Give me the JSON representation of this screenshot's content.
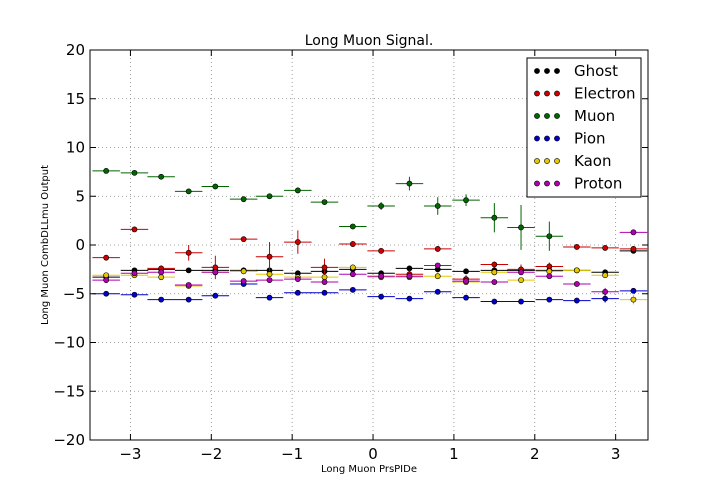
{
  "chart_data": {
    "type": "scatter",
    "title": "Long Muon Signal.",
    "xlabel": "Long Muon PrsPIDe",
    "ylabel": "Long Muon CombDLLmu Output",
    "xlim": [
      -3.5,
      3.4
    ],
    "ylim": [
      -20,
      20
    ],
    "xticks": [
      -3,
      -2,
      -1,
      0,
      1,
      2,
      3
    ],
    "yticks": [
      -20,
      -15,
      -10,
      -5,
      0,
      5,
      10,
      15,
      20
    ],
    "x_tick_labels": [
      "−3",
      "−2",
      "−1",
      "0",
      "1",
      "2",
      "3"
    ],
    "y_tick_labels": [
      "−20",
      "−15",
      "−10",
      "−5",
      "0",
      "5",
      "10",
      "15",
      "20"
    ],
    "grid": true,
    "legend_position": "top-right",
    "x_halfwidth": 0.17,
    "series": [
      {
        "name": "Ghost",
        "color": "#000000",
        "x": [
          -3.3,
          -2.95,
          -2.62,
          -2.28,
          -1.95,
          -1.6,
          -1.28,
          -0.93,
          -0.6,
          -0.25,
          0.1,
          0.45,
          0.8,
          1.15,
          1.5,
          1.83,
          2.18,
          2.52,
          2.87,
          3.22
        ],
        "y": [
          -3.3,
          -2.6,
          -2.5,
          -2.6,
          -2.6,
          -2.6,
          -2.6,
          -2.9,
          -2.7,
          -2.5,
          -2.9,
          -2.4,
          -2.5,
          -2.7,
          -2.6,
          -2.6,
          -2.6,
          -2.6,
          -2.8,
          -0.6
        ],
        "err": [
          0.2,
          0.2,
          0.2,
          0.2,
          0.2,
          0.3,
          0.5,
          0.3,
          0.3,
          0.2,
          0.2,
          0.2,
          0.3,
          0.2,
          0.2,
          0.2,
          0.2,
          0.2,
          0.2,
          0.2
        ]
      },
      {
        "name": "Electron",
        "color": "#cc0000",
        "x": [
          -3.3,
          -2.95,
          -2.62,
          -2.28,
          -1.95,
          -1.6,
          -1.28,
          -0.93,
          -0.6,
          -0.25,
          0.1,
          0.45,
          0.8,
          1.15,
          1.5,
          1.83,
          2.18,
          2.52,
          2.87,
          3.22
        ],
        "y": [
          -1.3,
          1.6,
          -2.4,
          -0.8,
          -2.3,
          0.6,
          -1.2,
          0.3,
          -2.3,
          0.1,
          -0.6,
          -3.0,
          -0.4,
          -3.5,
          -2.0,
          -2.5,
          -2.2,
          -0.2,
          -0.3,
          -0.4
        ],
        "err": [
          0.2,
          0.2,
          0.3,
          0.8,
          1.2,
          0.2,
          1.5,
          1.2,
          0.9,
          0.3,
          0.3,
          0.4,
          0.3,
          0.4,
          0.3,
          0.5,
          0.4,
          0.2,
          0.2,
          0.2
        ]
      },
      {
        "name": "Muon",
        "color": "#006600",
        "x": [
          -3.3,
          -2.95,
          -2.62,
          -2.28,
          -1.95,
          -1.6,
          -1.28,
          -0.93,
          -0.6,
          -0.25,
          0.1,
          0.45,
          0.8,
          1.15,
          1.5,
          1.83,
          2.18
        ],
        "y": [
          7.6,
          7.4,
          7.0,
          5.5,
          6.0,
          4.7,
          5.0,
          5.6,
          4.4,
          1.9,
          4.0,
          6.3,
          4.0,
          4.6,
          2.8,
          1.8,
          0.9
        ],
        "err": [
          0.2,
          0.2,
          0.2,
          0.2,
          0.2,
          0.2,
          0.2,
          0.3,
          0.2,
          0.2,
          0.4,
          0.7,
          0.9,
          0.6,
          1.5,
          2.3,
          1.5
        ]
      },
      {
        "name": "Pion",
        "color": "#0000cc",
        "x": [
          -3.3,
          -2.95,
          -2.62,
          -2.28,
          -1.95,
          -1.6,
          -1.28,
          -0.93,
          -0.6,
          -0.25,
          0.1,
          0.45,
          0.8,
          1.15,
          1.5,
          1.83,
          2.18,
          2.52,
          2.87,
          3.22
        ],
        "y": [
          -5.0,
          -5.1,
          -5.6,
          -5.6,
          -5.2,
          -4.0,
          -5.4,
          -4.9,
          -4.9,
          -4.6,
          -5.3,
          -5.5,
          -4.8,
          -5.4,
          -5.8,
          -5.8,
          -5.6,
          -5.7,
          -5.5,
          -4.7
        ],
        "err": [
          0.2,
          0.2,
          0.2,
          0.2,
          0.2,
          0.2,
          0.2,
          0.2,
          0.2,
          0.2,
          0.2,
          0.2,
          0.2,
          0.2,
          0.2,
          0.2,
          0.2,
          0.2,
          0.4,
          0.2
        ]
      },
      {
        "name": "Kaon",
        "color": "#e6c800",
        "x": [
          -3.3,
          -2.95,
          -2.62,
          -2.28,
          -1.95,
          -1.6,
          -1.28,
          -0.93,
          -0.6,
          -0.25,
          0.1,
          0.45,
          0.8,
          1.15,
          1.5,
          1.83,
          2.18,
          2.52,
          2.87,
          3.22
        ],
        "y": [
          -3.1,
          -3.1,
          -3.3,
          -4.2,
          -2.8,
          -2.7,
          -3.0,
          -3.3,
          -3.3,
          -2.3,
          -3.3,
          -3.3,
          -3.2,
          -3.8,
          -2.8,
          -3.6,
          -2.7,
          -2.6,
          -3.1,
          -5.6
        ],
        "err": [
          0.2,
          0.2,
          0.2,
          0.2,
          0.2,
          0.2,
          0.2,
          0.2,
          0.2,
          0.2,
          0.2,
          0.2,
          0.2,
          0.2,
          0.2,
          0.2,
          0.2,
          0.2,
          0.2,
          0.5
        ]
      },
      {
        "name": "Proton",
        "color": "#b000b0",
        "x": [
          -3.3,
          -2.95,
          -2.62,
          -2.28,
          -1.95,
          -1.6,
          -1.28,
          -0.93,
          -0.6,
          -0.25,
          0.1,
          0.45,
          0.8,
          1.15,
          1.5,
          1.83,
          2.18,
          2.52,
          2.87,
          3.22
        ],
        "y": [
          -3.6,
          -2.9,
          -2.8,
          -4.1,
          -2.8,
          -3.7,
          -3.6,
          -3.5,
          -3.8,
          -3.0,
          -3.2,
          -3.2,
          -2.1,
          -3.7,
          -3.8,
          -2.8,
          -3.2,
          -4.0,
          -4.8,
          1.3
        ],
        "err": [
          0.2,
          0.2,
          0.2,
          0.2,
          0.2,
          0.2,
          0.2,
          0.2,
          0.2,
          0.2,
          0.2,
          0.2,
          0.2,
          0.2,
          0.2,
          0.2,
          0.2,
          0.2,
          0.4,
          0.2
        ]
      }
    ]
  }
}
